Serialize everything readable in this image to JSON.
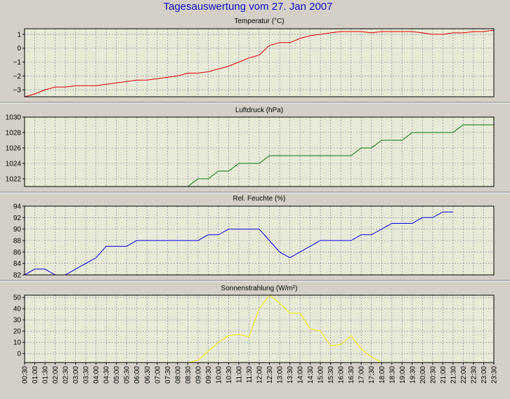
{
  "page": {
    "title": "Tagesauswertung vom 27. Jan 2007",
    "title_color": "#1010c0",
    "background": "#d4d0c8",
    "plot_background": "#e8ead8",
    "grid_color": "#7a7a9a"
  },
  "time_labels": [
    "00:30",
    "01:00",
    "01:30",
    "02:00",
    "02:30",
    "03:00",
    "03:30",
    "04:00",
    "04:30",
    "05:00",
    "05:30",
    "06:00",
    "06:30",
    "07:00",
    "07:30",
    "08:00",
    "08:30",
    "09:00",
    "09:30",
    "10:00",
    "10:30",
    "11:00",
    "11:30",
    "12:00",
    "12:30",
    "13:00",
    "13:30",
    "14:00",
    "14:30",
    "15:00",
    "15:30",
    "16:00",
    "16:30",
    "17:00",
    "17:30",
    "18:00",
    "18:30",
    "19:00",
    "19:30",
    "20:00",
    "20:30",
    "21:00",
    "21:30",
    "22:00",
    "22:30",
    "23:00",
    "23:30"
  ],
  "chart_data": [
    {
      "type": "line",
      "title": "Temperatur (°C)",
      "color": "#e00000",
      "ylim": [
        -3.5,
        1.4
      ],
      "yticks": [
        -3,
        -2,
        -1,
        0,
        1
      ],
      "x": [
        0.5,
        1.0,
        1.5,
        2.0,
        2.5,
        3.0,
        3.5,
        4.0,
        4.5,
        5.0,
        5.5,
        6.0,
        6.5,
        7.0,
        7.5,
        8.0,
        8.5,
        9.0,
        9.5,
        10.0,
        10.5,
        11.0,
        11.5,
        12.0,
        12.5,
        13.0,
        13.5,
        14.0,
        14.5,
        15.0,
        15.5,
        16.0,
        16.5,
        17.0,
        17.5,
        18.0,
        18.5,
        19.0,
        19.5,
        20.0,
        20.5,
        21.0,
        21.5,
        22.0,
        22.5,
        23.0,
        23.5
      ],
      "y": [
        -3.5,
        -3.3,
        -3.0,
        -2.8,
        -2.8,
        -2.7,
        -2.7,
        -2.7,
        -2.6,
        -2.5,
        -2.4,
        -2.3,
        -2.3,
        -2.2,
        -2.1,
        -2.0,
        -1.8,
        -1.8,
        -1.7,
        -1.5,
        -1.3,
        -1.0,
        -0.7,
        -0.5,
        0.2,
        0.4,
        0.4,
        0.7,
        0.9,
        1.0,
        1.1,
        1.2,
        1.2,
        1.2,
        1.1,
        1.2,
        1.2,
        1.2,
        1.2,
        1.1,
        1.0,
        1.0,
        1.1,
        1.1,
        1.2,
        1.2,
        1.3
      ]
    },
    {
      "type": "line",
      "title": "Luftdruck (hPa)",
      "color": "#007a00",
      "ylim": [
        1021,
        1030
      ],
      "yticks": [
        1022,
        1024,
        1026,
        1028,
        1030
      ],
      "x": [
        8.5,
        9.0,
        9.5,
        10.0,
        10.5,
        11.0,
        11.5,
        12.0,
        12.5,
        13.0,
        13.5,
        14.0,
        14.5,
        15.0,
        15.5,
        16.0,
        16.5,
        17.0,
        17.5,
        18.0,
        18.5,
        19.0,
        19.5,
        20.0,
        20.5,
        21.0,
        21.5,
        22.0,
        22.5,
        23.0,
        23.5
      ],
      "y": [
        1021,
        1022,
        1022,
        1023,
        1023,
        1024,
        1024,
        1024,
        1025,
        1025,
        1025,
        1025,
        1025,
        1025,
        1025,
        1025,
        1025,
        1026,
        1026,
        1027,
        1027,
        1027,
        1028,
        1028,
        1028,
        1028,
        1028,
        1029,
        1029,
        1029,
        1029
      ]
    },
    {
      "type": "line",
      "title": "Rel. Feuchte (%)",
      "color": "#0000e0",
      "ylim": [
        82,
        94
      ],
      "yticks": [
        82,
        84,
        86,
        88,
        90,
        92,
        94
      ],
      "x": [
        0.5,
        1.0,
        1.5,
        2.0,
        2.5,
        3.0,
        3.5,
        4.0,
        4.5,
        5.0,
        5.5,
        6.0,
        6.5,
        7.0,
        7.5,
        8.0,
        8.5,
        9.0,
        9.5,
        10.0,
        10.5,
        11.0,
        11.5,
        12.0,
        12.5,
        13.0,
        13.5,
        14.0,
        14.5,
        15.0,
        15.5,
        16.0,
        16.5,
        17.0,
        17.5,
        18.0,
        18.5,
        19.0,
        19.5,
        20.0,
        20.5,
        21.0,
        21.5
      ],
      "y": [
        82,
        83,
        83,
        82,
        82,
        83,
        84,
        85,
        87,
        87,
        87,
        88,
        88,
        88,
        88,
        88,
        88,
        88,
        89,
        89,
        90,
        90,
        90,
        90,
        88,
        86,
        85,
        86,
        87,
        88,
        88,
        88,
        88,
        89,
        89,
        90,
        91,
        91,
        91,
        92,
        92,
        93,
        93
      ]
    },
    {
      "type": "line",
      "title": "Sonnenstrahlung (W/m²)",
      "color": "#f0f000",
      "ylim": [
        -8,
        52
      ],
      "yticks": [
        0,
        10,
        20,
        30,
        40,
        50
      ],
      "x": [
        0.5,
        1.0,
        1.5,
        2.0,
        2.5,
        3.0,
        3.5,
        4.0,
        4.5,
        5.0,
        5.5,
        6.0,
        6.5,
        7.0,
        7.5,
        8.0,
        8.5,
        9.0,
        9.5,
        10.0,
        10.5,
        11.0,
        11.5,
        12.0,
        12.5,
        13.0,
        13.5,
        14.0,
        14.5,
        15.0,
        15.5,
        16.0,
        16.5,
        17.0,
        17.5,
        18.0,
        18.5,
        19.0,
        19.5,
        20.0,
        20.5,
        21.0,
        21.5,
        22.0,
        22.5,
        23.0,
        23.5
      ],
      "y": [
        -8,
        -8,
        -8,
        -8,
        -8,
        -8,
        -8,
        -8,
        -8,
        -8,
        -8,
        -8,
        -8,
        -8,
        -8,
        -8,
        -8,
        -6,
        2,
        10,
        16,
        17,
        15,
        40,
        52,
        45,
        36,
        36,
        22,
        20,
        7,
        8,
        16,
        4,
        -3,
        -8,
        -8,
        -8,
        -8,
        -8,
        -8,
        -8,
        -8,
        -8,
        -8,
        -8,
        -8
      ]
    }
  ]
}
